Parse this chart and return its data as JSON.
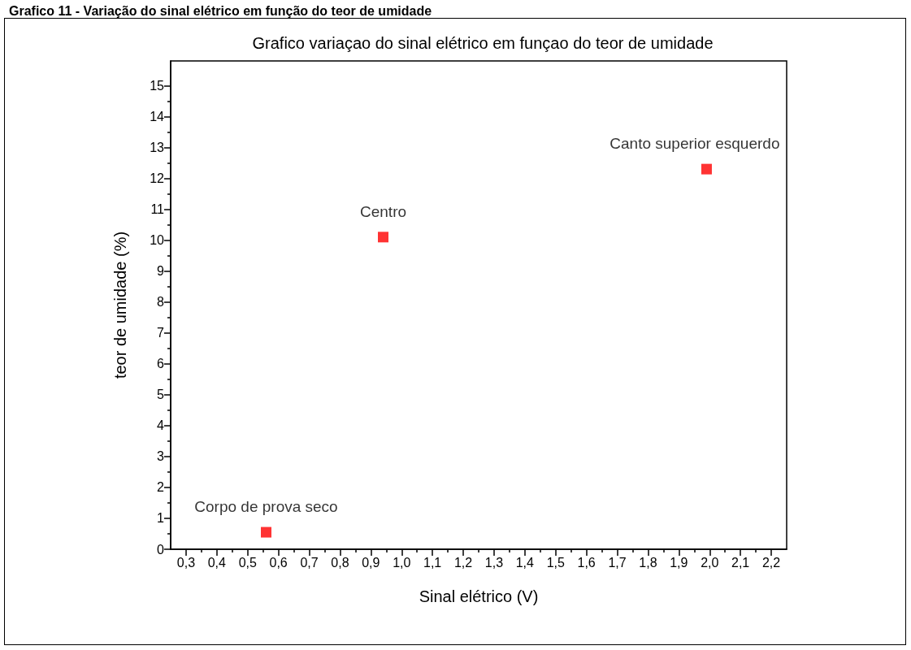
{
  "chart_data": {
    "type": "scatter",
    "title": "Grafico 11 - Variação do sinal elétrico em função do teor de umidade",
    "subtitle": "Grafico variaçao do sinal elétrico em funçao do teor de umidade",
    "xlabel": "Sinal elétrico (V)",
    "ylabel": "teor de umidade (%)",
    "x": [
      0.56,
      0.94,
      1.99
    ],
    "series": [
      {
        "color": "#ff0000",
        "values": [
          0.55,
          10.1,
          12.3
        ]
      }
    ],
    "marker": "square",
    "grid": false,
    "xlim": [
      0.25,
      2.25
    ],
    "xticks": [
      {
        "value": 0.3,
        "label": "0,3"
      },
      {
        "value": 0.35,
        "label": null
      },
      {
        "value": 0.4,
        "label": "0,4"
      },
      {
        "value": 0.45,
        "label": null
      },
      {
        "value": 0.5,
        "label": "0,5"
      },
      {
        "value": 0.55,
        "label": null
      },
      {
        "value": 0.6,
        "label": "0,6"
      },
      {
        "value": 0.65,
        "label": null
      },
      {
        "value": 0.7,
        "label": "0,7"
      },
      {
        "value": 0.75,
        "label": null
      },
      {
        "value": 0.8,
        "label": "0,8"
      },
      {
        "value": 0.85,
        "label": null
      },
      {
        "value": 0.9,
        "label": "0,9"
      },
      {
        "value": 0.95,
        "label": null
      },
      {
        "value": 1.0,
        "label": "1,0"
      },
      {
        "value": 1.05,
        "label": null
      },
      {
        "value": 1.1,
        "label": "1,1"
      },
      {
        "value": 1.15,
        "label": null
      },
      {
        "value": 1.2,
        "label": "1,2"
      },
      {
        "value": 1.25,
        "label": null
      },
      {
        "value": 1.3,
        "label": "1,3"
      },
      {
        "value": 1.35,
        "label": null
      },
      {
        "value": 1.4,
        "label": "1,4"
      },
      {
        "value": 1.45,
        "label": null
      },
      {
        "value": 1.5,
        "label": "1,5"
      },
      {
        "value": 1.55,
        "label": null
      },
      {
        "value": 1.6,
        "label": "1,6"
      },
      {
        "value": 1.65,
        "label": null
      },
      {
        "value": 1.7,
        "label": "1,7"
      },
      {
        "value": 1.75,
        "label": null
      },
      {
        "value": 1.8,
        "label": "1,8"
      },
      {
        "value": 1.85,
        "label": null
      },
      {
        "value": 1.9,
        "label": "1,9"
      },
      {
        "value": 1.95,
        "label": null
      },
      {
        "value": 2.0,
        "label": "2,0"
      },
      {
        "value": 2.05,
        "label": null
      },
      {
        "value": 2.1,
        "label": "2,1"
      },
      {
        "value": 2.15,
        "label": null
      },
      {
        "value": 2.2,
        "label": "2,2"
      }
    ],
    "ylim": [
      0,
      15.8
    ],
    "yticks": [
      0,
      {
        "value": 0.5,
        "label": null
      },
      1,
      {
        "value": 1.5,
        "label": null
      },
      2,
      {
        "value": 2.5,
        "label": null
      },
      3,
      {
        "value": 3.5,
        "label": null
      },
      4,
      {
        "value": 4.5,
        "label": null
      },
      5,
      {
        "value": 5.5,
        "label": null
      },
      6,
      {
        "value": 6.5,
        "label": null
      },
      7,
      {
        "value": 7.5,
        "label": null
      },
      8,
      {
        "value": 8.5,
        "label": null
      },
      9,
      {
        "value": 9.5,
        "label": null
      },
      10,
      {
        "value": 10.5,
        "label": null
      },
      11,
      {
        "value": 11.5,
        "label": null
      },
      12,
      {
        "value": 12.5,
        "label": null
      },
      13,
      {
        "value": 13.5,
        "label": null
      },
      14,
      {
        "value": 14.5,
        "label": null
      },
      15
    ],
    "annotations": [
      {
        "text": "Corpo de prova seco",
        "x": 0.56,
        "y": 0.55
      },
      {
        "text": "Centro",
        "x": 0.94,
        "y": 10.1
      },
      {
        "text": "Canto superior esquerdo",
        "x": 1.99,
        "y": 12.3
      }
    ]
  }
}
